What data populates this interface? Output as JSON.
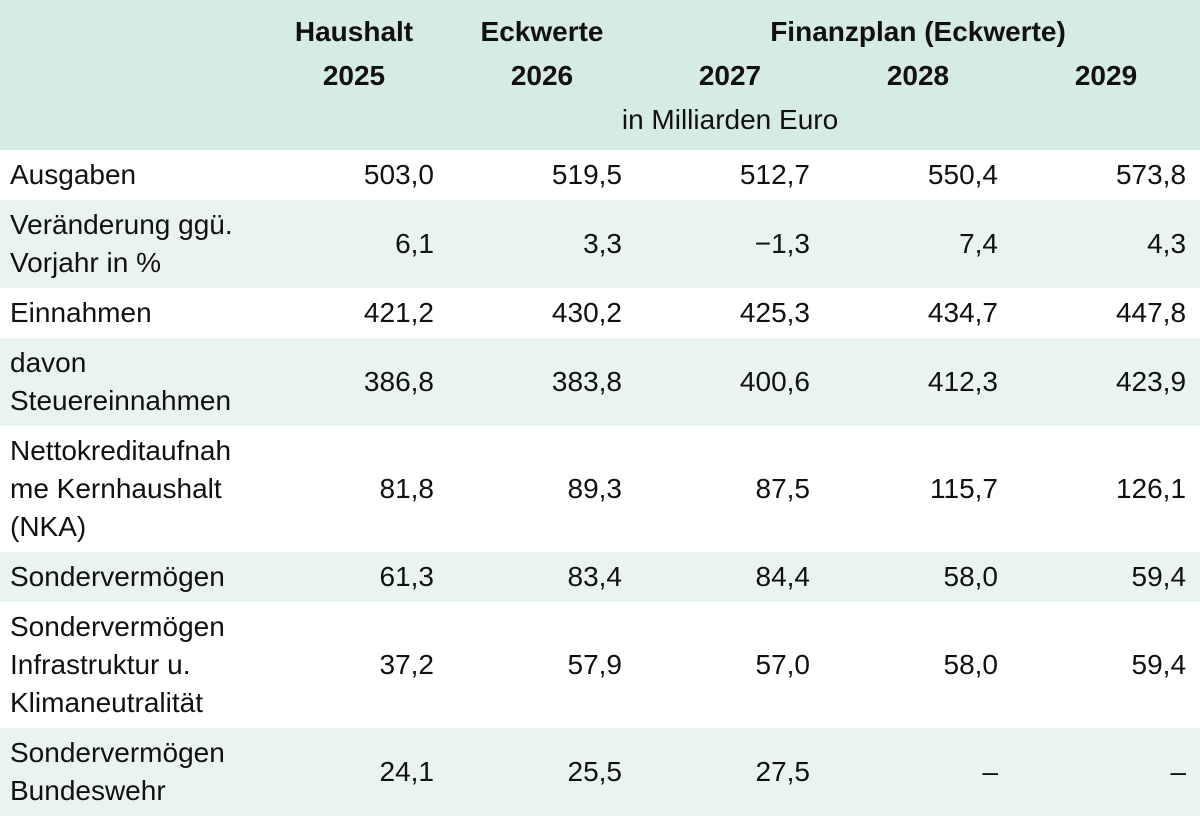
{
  "colors": {
    "header_bg": "#d7ebe6",
    "row_alt_bg": "#e9f4f1",
    "row_bg": "#ffffff",
    "text": "#111111"
  },
  "header": {
    "h1": {
      "label": "Haushalt",
      "year": "2025"
    },
    "h2": {
      "label": "Eckwerte",
      "year": "2026"
    },
    "group_label": "Finanzplan (Eckwerte)",
    "years": [
      "2027",
      "2028",
      "2029"
    ],
    "unit_note": "in Milliarden Euro"
  },
  "rows": [
    {
      "label": "Ausgaben",
      "values": [
        "503,0",
        "519,5",
        "512,7",
        "550,4",
        "573,8"
      ]
    },
    {
      "label": "Veränderung ggü. Vorjahr in %",
      "values": [
        "6,1",
        "3,3",
        "−1,3",
        "7,4",
        "4,3"
      ]
    },
    {
      "label": "Einnahmen",
      "values": [
        "421,2",
        "430,2",
        "425,3",
        "434,7",
        "447,8"
      ]
    },
    {
      "label": "davon Steuereinnahmen",
      "values": [
        "386,8",
        "383,8",
        "400,6",
        "412,3",
        "423,9"
      ]
    },
    {
      "label": "Nettokreditaufnahme Kernhaushalt (NKA)",
      "values": [
        "81,8",
        "89,3",
        "87,5",
        "115,7",
        "126,1"
      ]
    },
    {
      "label": "Sondervermögen",
      "values": [
        "61,3",
        "83,4",
        "84,4",
        "58,0",
        "59,4"
      ]
    },
    {
      "label": "Sondervermögen Infrastruktur u. Klimaneutralität",
      "values": [
        "37,2",
        "57,9",
        "57,0",
        "58,0",
        "59,4"
      ]
    },
    {
      "label": "Sondervermögen Bundeswehr",
      "values": [
        "24,1",
        "25,5",
        "27,5",
        "–",
        "–"
      ]
    }
  ],
  "chart_data": {
    "type": "table",
    "unit": "in Milliarden Euro",
    "columns": [
      "Haushalt 2025",
      "Eckwerte 2026",
      "2027",
      "2028",
      "2029"
    ],
    "column_groups": [
      {
        "label": "Finanzplan (Eckwerte)",
        "columns": [
          "2027",
          "2028",
          "2029"
        ]
      }
    ],
    "rows": [
      {
        "label": "Ausgaben",
        "values": [
          503.0,
          519.5,
          512.7,
          550.4,
          573.8
        ]
      },
      {
        "label": "Veränderung ggü. Vorjahr in %",
        "values": [
          6.1,
          3.3,
          -1.3,
          7.4,
          4.3
        ]
      },
      {
        "label": "Einnahmen",
        "values": [
          421.2,
          430.2,
          425.3,
          434.7,
          447.8
        ]
      },
      {
        "label": "davon Steuereinnahmen",
        "values": [
          386.8,
          383.8,
          400.6,
          412.3,
          423.9
        ]
      },
      {
        "label": "Nettokreditaufnahme Kernhaushalt (NKA)",
        "values": [
          81.8,
          89.3,
          87.5,
          115.7,
          126.1
        ]
      },
      {
        "label": "Sondervermögen",
        "values": [
          61.3,
          83.4,
          84.4,
          58.0,
          59.4
        ]
      },
      {
        "label": "Sondervermögen Infrastruktur u. Klimaneutralität",
        "values": [
          37.2,
          57.9,
          57.0,
          58.0,
          59.4
        ]
      },
      {
        "label": "Sondervermögen Bundeswehr",
        "values": [
          24.1,
          25.5,
          27.5,
          null,
          null
        ]
      }
    ]
  }
}
